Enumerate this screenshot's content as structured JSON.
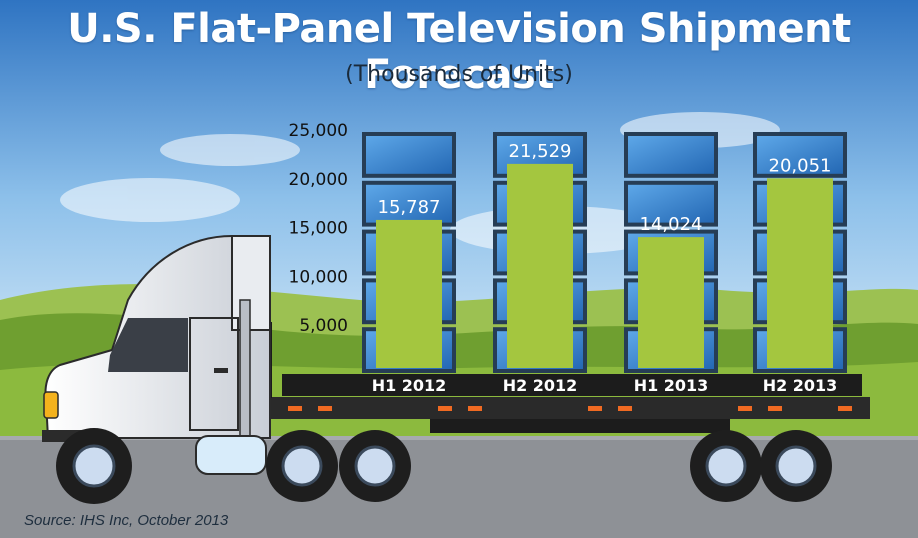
{
  "title": "U.S. Flat-Panel Television Shipment Forecast",
  "subtitle": "(Thousands of Units)",
  "source": "Source: IHS Inc, October  2013",
  "chart_data": {
    "type": "bar",
    "title": "U.S. Flat-Panel Television Shipment Forecast",
    "subtitle": "(Thousands of Units)",
    "categories": [
      "H1 2012",
      "H2 2012",
      "H1 2013",
      "H2 2013"
    ],
    "values": [
      15787,
      21529,
      14024,
      20051
    ],
    "value_labels": [
      "15,787",
      "21,529",
      "14,024",
      "20,051"
    ],
    "y_ticks": [
      "5,000",
      "10,000",
      "15,000",
      "20,000",
      "25,000"
    ],
    "ylim": [
      0,
      25000
    ],
    "xlabel": "",
    "ylabel": "",
    "grid": false,
    "legend": "none"
  },
  "colors": {
    "bar_fill": "#a4c63f",
    "tv_frame": "#263d55",
    "tv_screen": "#3b88d3",
    "sky": "#a9d1ee",
    "grass": "#7aaa37",
    "road": "#8e9196",
    "text_dark": "#111111"
  }
}
